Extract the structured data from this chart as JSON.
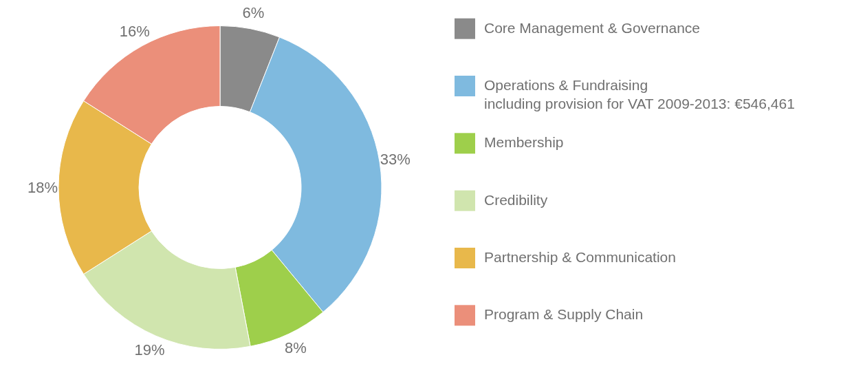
{
  "chart_data": {
    "type": "donut",
    "categories": [
      "Core Management & Governance",
      "Operations & Fundraising\nincluding provision for VAT 2009-2013: €546,461",
      "Membership",
      "Credibility",
      "Partnership & Communication",
      "Program & Supply Chain"
    ],
    "values": [
      6,
      33,
      8,
      19,
      18,
      16
    ],
    "value_labels": [
      "6%",
      "33%",
      "8%",
      "19%",
      "18%",
      "16%"
    ],
    "colors": [
      "#8a8a8a",
      "#7fbadf",
      "#9ecf4b",
      "#d0e5ae",
      "#e8b84b",
      "#eb8f7a"
    ],
    "legend": "right"
  }
}
